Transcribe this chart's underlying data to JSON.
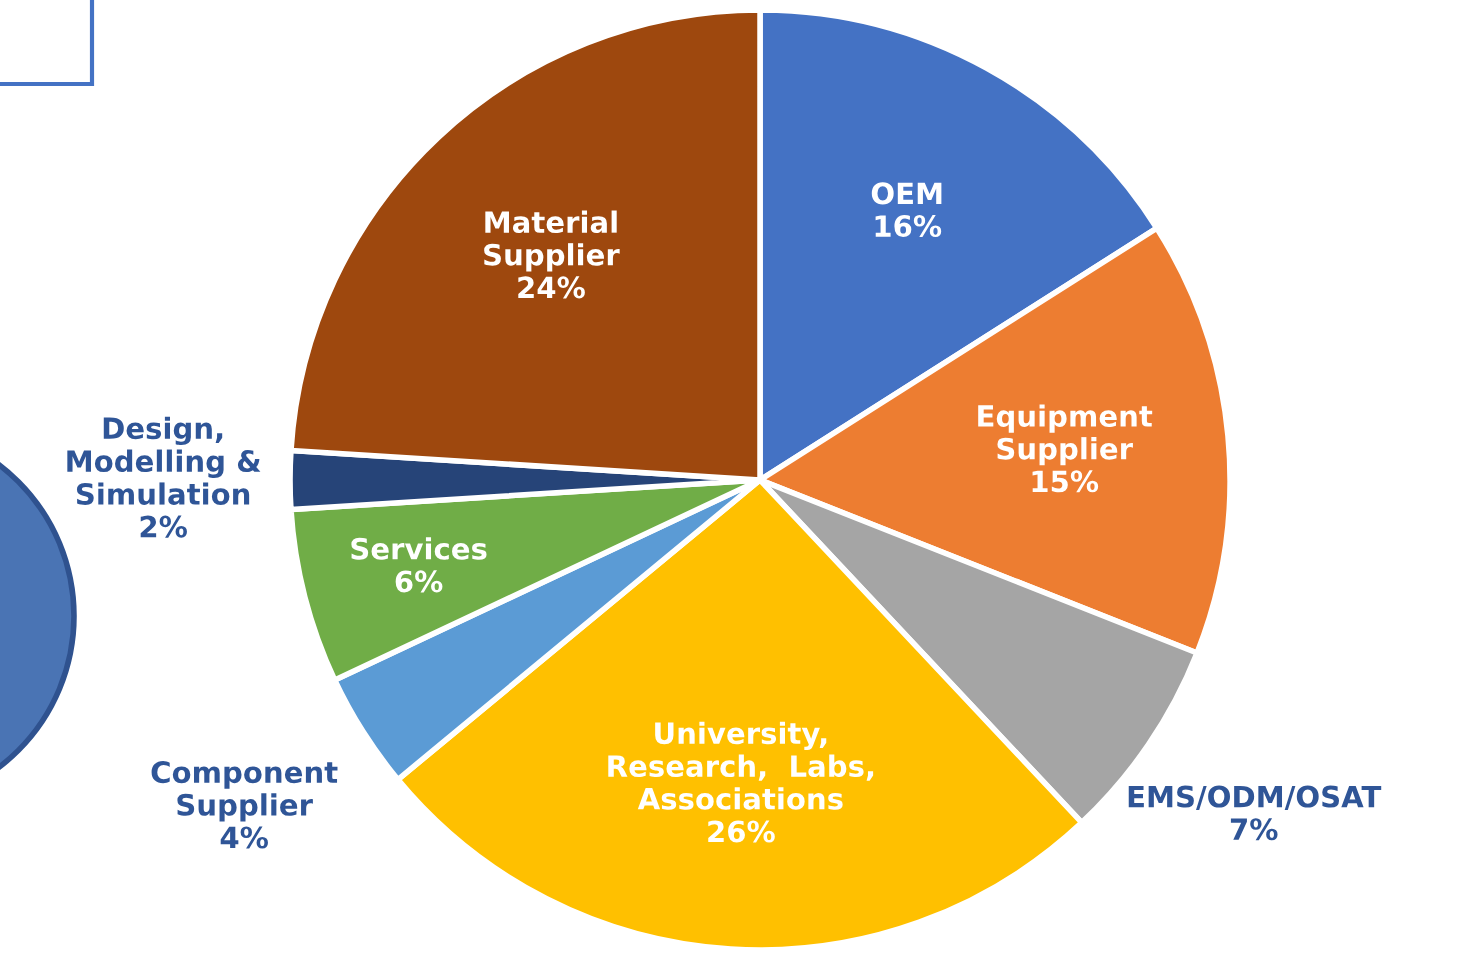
{
  "chart_data": {
    "type": "pie",
    "categories": [
      "OEM",
      "Equipment\nSupplier",
      "EMS/ODM/OSAT",
      "University,\nResearch,  Labs,\nAssociations",
      "Component\nSupplier",
      "Services",
      "Design,\nModelling &\nSimulation",
      "Material\nSupplier"
    ],
    "values": [
      16,
      15,
      7,
      26,
      4,
      6,
      2,
      24
    ],
    "colors": [
      "#4472c4",
      "#ed7d31",
      "#a5a5a5",
      "#ffc000",
      "#5b9bd5",
      "#70ad47",
      "#264478",
      "#9e480e"
    ],
    "value_labels": [
      "16%",
      "15%",
      "7%",
      "26%",
      "4%",
      "6%",
      "2%",
      "24%"
    ]
  }
}
